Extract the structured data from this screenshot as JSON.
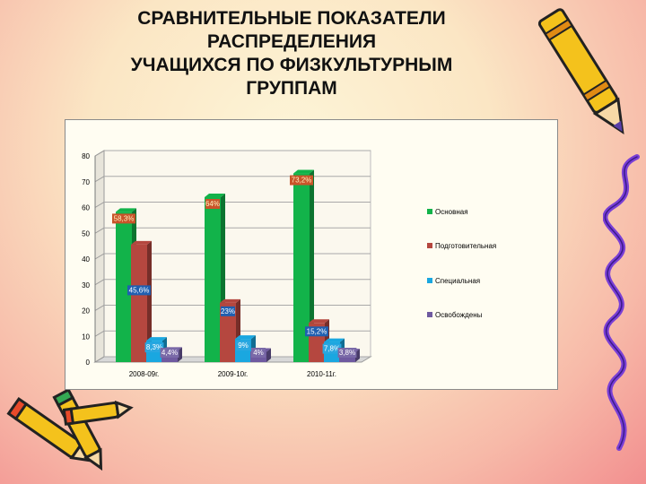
{
  "slide": {
    "title_lines": [
      "СРАВНИТЕЛЬНЫЕ ПОКАЗАТЕЛИ",
      "РАСПРЕДЕЛЕНИЯ",
      "УЧАЩИХСЯ ПО ФИЗКУЛЬТУРНЫМ",
      "ГРУППАМ"
    ]
  },
  "chart_data": {
    "type": "bar",
    "title": "",
    "xlabel": "",
    "ylabel": "",
    "categories": [
      "2008-09г.",
      "2009-10г.",
      "2010-11г."
    ],
    "ylim": [
      0,
      80
    ],
    "yticks": [
      0,
      10,
      20,
      30,
      40,
      50,
      60,
      70,
      80
    ],
    "grid": true,
    "legend_position": "right",
    "series": [
      {
        "name": "Основная",
        "color": "#12b34a",
        "values": [
          58.3,
          64,
          73.2
        ],
        "labels": [
          "58,3%",
          "64%",
          "73,2%"
        ]
      },
      {
        "name": "Подготовительная",
        "color": "#b5473f",
        "values": [
          45.6,
          23,
          15.2
        ],
        "labels": [
          "45,6%",
          "23%",
          "15,2%"
        ]
      },
      {
        "name": "Специальная",
        "color": "#1aa7e0",
        "values": [
          8.3,
          9,
          7.8
        ],
        "labels": [
          "8,3%",
          "9%",
          "7,8%"
        ]
      },
      {
        "name": "Освобождены",
        "color": "#6f5aa0",
        "values": [
          4.4,
          4,
          3.8
        ],
        "labels": [
          "4,4%",
          "4%",
          "3,8%"
        ]
      }
    ]
  },
  "decorations": {
    "icons": [
      "pencil-icon",
      "pencil-icon",
      "pencil-icon",
      "pencil-icon",
      "squiggle-line-icon"
    ]
  }
}
